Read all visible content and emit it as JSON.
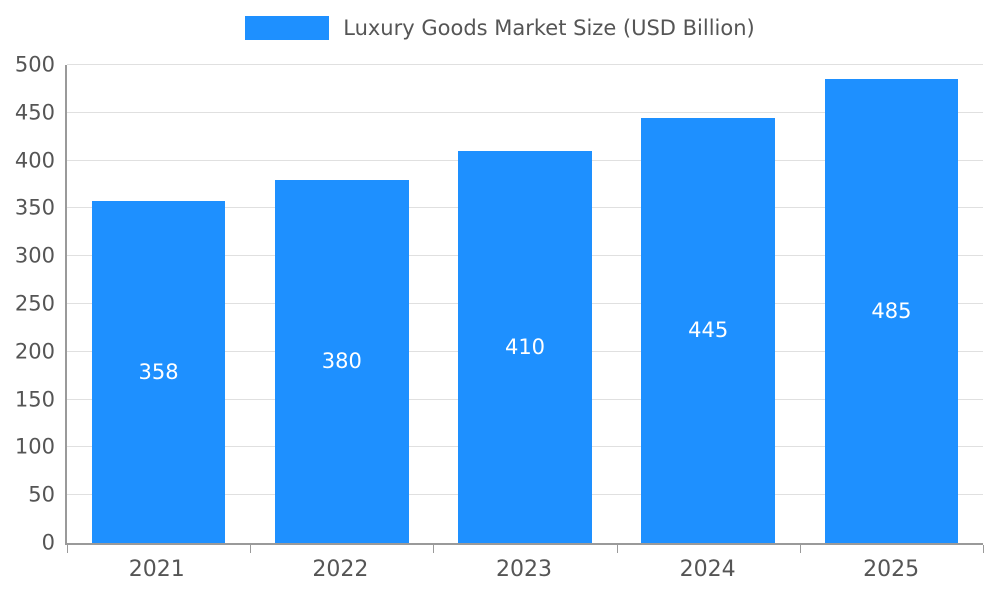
{
  "chart_data": {
    "type": "bar",
    "title": "Luxury Goods Market Size (USD Billion)",
    "categories": [
      "2021",
      "2022",
      "2023",
      "2024",
      "2025"
    ],
    "values": [
      358,
      380,
      410,
      445,
      485
    ],
    "xlabel": "",
    "ylabel": "",
    "ylim": [
      0,
      500
    ],
    "ytick_step": 50,
    "yticks": [
      0,
      50,
      100,
      150,
      200,
      250,
      300,
      350,
      400,
      450,
      500
    ],
    "grid": true,
    "legend_position": "top-center",
    "value_labels": "inside-center",
    "colors": {
      "bar": "#1E90FF",
      "value_label": "#FFFFFF",
      "axis": "#9A9A9A",
      "gridline": "#E0E0E0",
      "tick_label": "#555555",
      "background": "#FFFFFF"
    }
  }
}
